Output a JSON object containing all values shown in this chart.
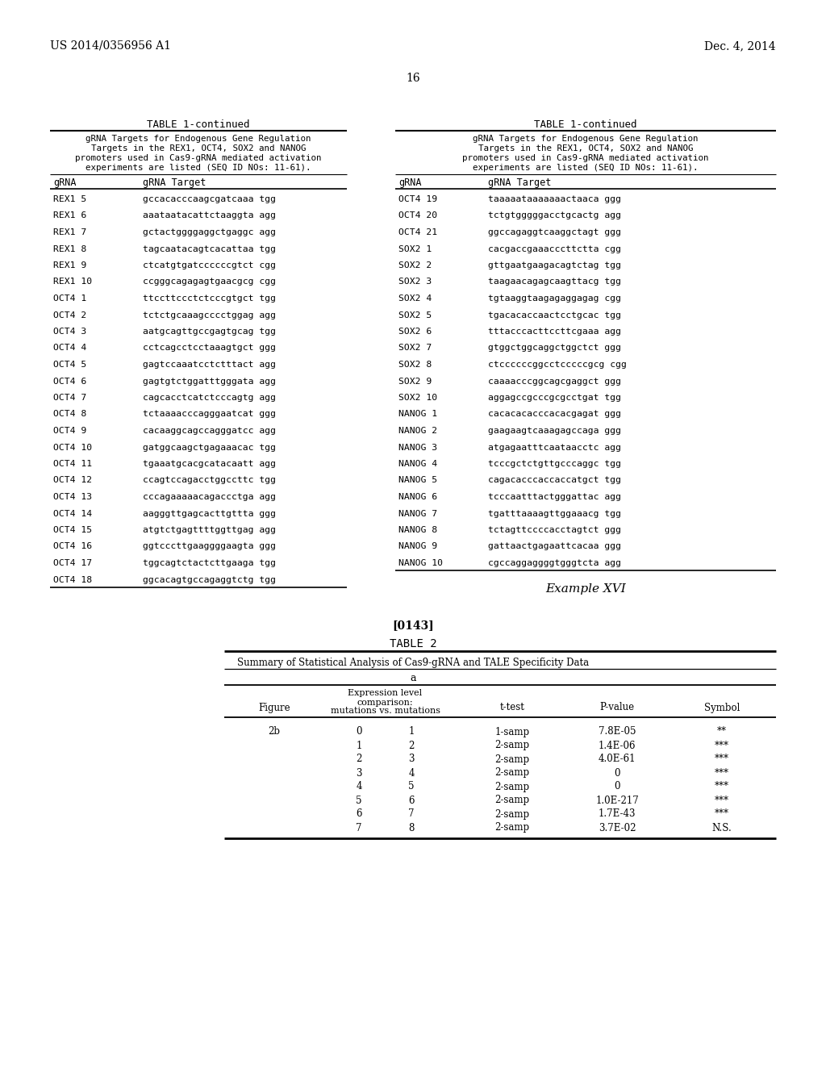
{
  "bg_color": "#ffffff",
  "header_left": "US 2014/0356956 A1",
  "header_right": "Dec. 4, 2014",
  "page_number": "16",
  "table1_title": "TABLE 1-continued",
  "table1_subtitle": "gRNA Targets for Endogenous Gene Regulation\n    Targets in the REX1, OCT4, SOX2 and NANOG\n  promoters used in Cas9-gRNA mediated activation\n    experiments are listed (SEQ ID NOs: 11-61).",
  "table1_col1_header": "gRNA",
  "table1_col2_header": "gRNA Target",
  "table1_left_data": [
    [
      "REX1 5",
      "gccacacccaagcgatcaaa tgg"
    ],
    [
      "REX1 6",
      "aaataatacattctaaggta agg"
    ],
    [
      "REX1 7",
      "gctactggggaggctgaggc agg"
    ],
    [
      "REX1 8",
      "tagcaatacagtcacattaa tgg"
    ],
    [
      "REX1 9",
      "ctcatgtgatccccccgtct cgg"
    ],
    [
      "REX1 10",
      "ccgggcagagagtgaacgcg cgg"
    ],
    [
      "OCT4 1",
      "ttccttccctctcccgtgct tgg"
    ],
    [
      "OCT4 2",
      "tctctgcaaagcccctggag agg"
    ],
    [
      "OCT4 3",
      "aatgcagttgccgagtgcag tgg"
    ],
    [
      "OCT4 4",
      "cctcagcctcctaaagtgct ggg"
    ],
    [
      "OCT4 5",
      "gagtccaaatcctctttact agg"
    ],
    [
      "OCT4 6",
      "gagtgtctggatttgggata agg"
    ],
    [
      "OCT4 7",
      "cagcacctcatctcccagtg agg"
    ],
    [
      "OCT4 8",
      "tctaaaacccagggaatcat ggg"
    ],
    [
      "OCT4 9",
      "cacaaggcagccagggatcc agg"
    ],
    [
      "OCT4 10",
      "gatggcaagctgagaaacac tgg"
    ],
    [
      "OCT4 11",
      "tgaaatgcacgcatacaatt agg"
    ],
    [
      "OCT4 12",
      "ccagtccagacctggccttc tgg"
    ],
    [
      "OCT4 13",
      "cccagaaaaacagaccctga agg"
    ],
    [
      "OCT4 14",
      "aagggttgagcacttgttta ggg"
    ],
    [
      "OCT4 15",
      "atgtctgagttttggttgag agg"
    ],
    [
      "OCT4 16",
      "ggtcccttgaaggggaagta ggg"
    ],
    [
      "OCT4 17",
      "tggcagtctactcttgaaga tgg"
    ],
    [
      "OCT4 18",
      "ggcacagtgccagaggtctg tgg"
    ]
  ],
  "table1_right_data": [
    [
      "OCT4 19",
      "taaaaataaaaaaactaaca ggg"
    ],
    [
      "OCT4 20",
      "tctgtgggggacctgcactg agg"
    ],
    [
      "OCT4 21",
      "ggccagaggtcaaggctagt ggg"
    ],
    [
      "SOX2 1",
      "cacgaccgaaacccttctta cgg"
    ],
    [
      "SOX2 2",
      "gttgaatgaagacagtctag tgg"
    ],
    [
      "SOX2 3",
      "taagaacagagcaagttacg tgg"
    ],
    [
      "SOX2 4",
      "tgtaaggtaagagaggagag cgg"
    ],
    [
      "SOX2 5",
      "tgacacaccaactcctgcac tgg"
    ],
    [
      "SOX2 6",
      "tttacccacttccttcgaaa agg"
    ],
    [
      "SOX2 7",
      "gtggctggcaggctggctct ggg"
    ],
    [
      "SOX2 8",
      "ctccccccggcctcccccgcg cgg"
    ],
    [
      "SOX2 9",
      "caaaacccggcagcgaggct ggg"
    ],
    [
      "SOX2 10",
      "aggagccgcccgcgcctgat tgg"
    ],
    [
      "NANOG 1",
      "cacacacacccacacgagat ggg"
    ],
    [
      "NANOG 2",
      "gaagaagtcaaagagccaga ggg"
    ],
    [
      "NANOG 3",
      "atgagaatttcaataacctc agg"
    ],
    [
      "NANOG 4",
      "tcccgctctgttgcccaggc tgg"
    ],
    [
      "NANOG 5",
      "cagacacccaccaccatgct tgg"
    ],
    [
      "NANOG 6",
      "tcccaatttactgggattac agg"
    ],
    [
      "NANOG 7",
      "tgatttaaaagttggaaacg tgg"
    ],
    [
      "NANOG 8",
      "tctagttccccacctagtct ggg"
    ],
    [
      "NANOG 9",
      "gattaactgagaattcacaa ggg"
    ],
    [
      "NANOG 10",
      "cgccaggaggggtgggtcta agg"
    ]
  ],
  "example_label": "Example XVI",
  "paragraph_label": "[0143]",
  "table2_title": "TABLE 2",
  "table2_subtitle": "Summary of Statistical Analysis of Cas9-gRNA and TALE Specificity Data",
  "table2_span_header": "a",
  "table2_data": [
    [
      "2b",
      "0",
      "1",
      "1-samp",
      "7.8E-05",
      "**"
    ],
    [
      "",
      "1",
      "2",
      "2-samp",
      "1.4E-06",
      "***"
    ],
    [
      "",
      "2",
      "3",
      "2-samp",
      "4.0E-61",
      "***"
    ],
    [
      "",
      "3",
      "4",
      "2-samp",
      "0",
      "***"
    ],
    [
      "",
      "4",
      "5",
      "2-samp",
      "0",
      "***"
    ],
    [
      "",
      "5",
      "6",
      "2-samp",
      "1.0E-217",
      "***"
    ],
    [
      "",
      "6",
      "7",
      "2-samp",
      "1.7E-43",
      "***"
    ],
    [
      "",
      "7",
      "8",
      "2-samp",
      "3.7E-02",
      "N.S."
    ]
  ]
}
